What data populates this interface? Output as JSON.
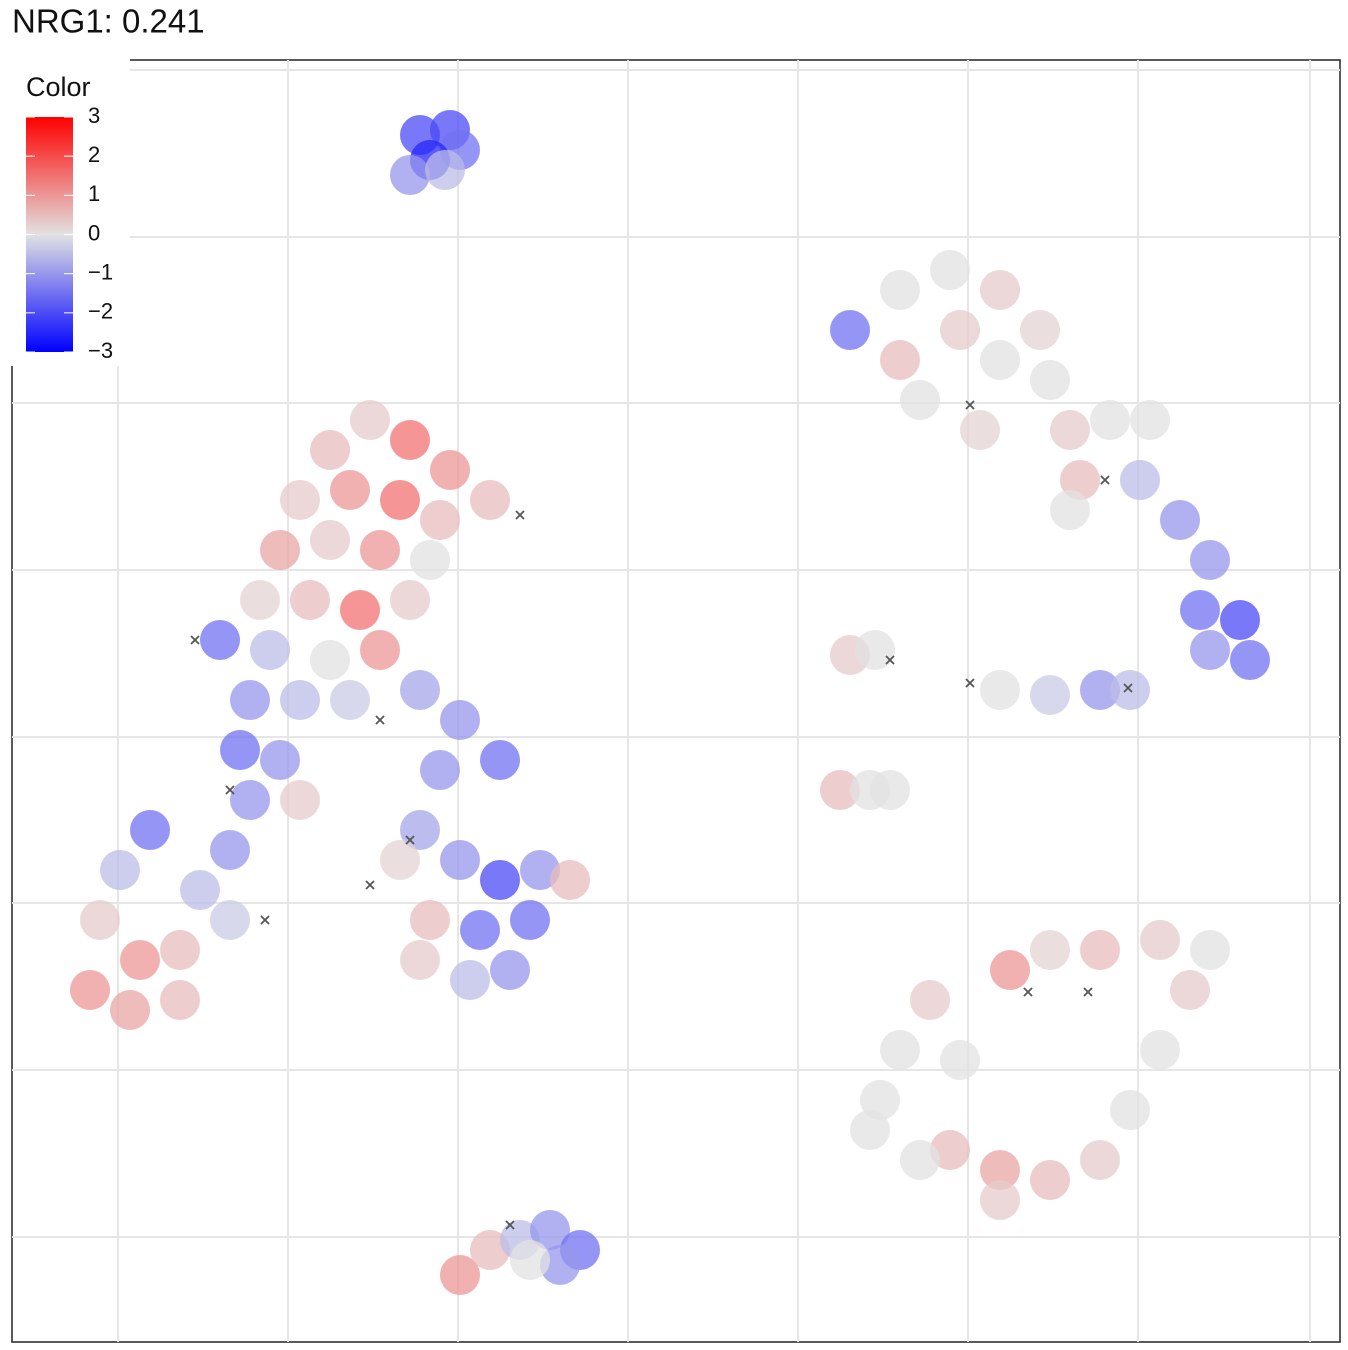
{
  "chart_data": {
    "type": "scatter",
    "title": "NRG1: 0.241",
    "legend_title": "Color",
    "xlim": [
      12,
      1340
    ],
    "ylim": [
      8,
      1290
    ],
    "xticks": [
      118,
      288,
      458,
      628,
      798,
      968,
      1138,
      1310
    ],
    "yticks": [
      113,
      280,
      447,
      613,
      780,
      947,
      1113,
      1280
    ],
    "grid": true,
    "clim": [
      -3,
      3
    ],
    "colorscale": {
      "low": "#0000ff",
      "mid": "#e2e2e2",
      "high": "#ff0000"
    },
    "cticks": [
      3,
      2,
      1,
      0,
      {
        "value": -1,
        "label": "−1"
      },
      {
        "value": -2,
        "label": "−2"
      },
      {
        "value": -3,
        "label": "−3"
      }
    ],
    "x": [
      420,
      450,
      460,
      430,
      410,
      445,
      370,
      330,
      410,
      450,
      490,
      300,
      350,
      400,
      440,
      280,
      330,
      380,
      430,
      260,
      310,
      360,
      410,
      220,
      270,
      330,
      380,
      250,
      300,
      350,
      420,
      240,
      280,
      460,
      500,
      440,
      250,
      230,
      200,
      150,
      120,
      100,
      140,
      180,
      90,
      130,
      180,
      230,
      420,
      460,
      500,
      540,
      570,
      430,
      480,
      530,
      420,
      470,
      510,
      400,
      300,
      850,
      900,
      950,
      1000,
      1040,
      900,
      960,
      1000,
      920,
      980,
      1050,
      1070,
      1110,
      1150,
      1080,
      1140,
      1180,
      1210,
      1200,
      1240,
      1250,
      1210,
      1070,
      850,
      875,
      1000,
      1050,
      1100,
      1130,
      840,
      870,
      890,
      880,
      900,
      930,
      960,
      950,
      1000,
      1050,
      1100,
      1130,
      1160,
      1190,
      1210,
      1160,
      1100,
      1050,
      1010,
      1000,
      920,
      870,
      460,
      490,
      520,
      550,
      580,
      560,
      530
    ],
    "y": [
      1215,
      1220,
      1200,
      1190,
      1175,
      1180,
      930,
      900,
      910,
      880,
      850,
      850,
      860,
      850,
      830,
      800,
      810,
      800,
      790,
      750,
      750,
      740,
      750,
      710,
      700,
      690,
      700,
      650,
      650,
      650,
      660,
      600,
      590,
      630,
      590,
      580,
      550,
      500,
      460,
      520,
      480,
      430,
      390,
      400,
      360,
      340,
      350,
      430,
      520,
      490,
      470,
      480,
      470,
      430,
      420,
      430,
      390,
      370,
      380,
      490,
      550,
      1020,
      1060,
      1080,
      1060,
      1020,
      990,
      1020,
      990,
      950,
      920,
      970,
      920,
      930,
      930,
      870,
      870,
      830,
      790,
      740,
      730,
      690,
      700,
      840,
      695,
      700,
      660,
      655,
      660,
      660,
      560,
      560,
      560,
      250,
      300,
      350,
      290,
      200,
      180,
      170,
      190,
      240,
      300,
      360,
      400,
      410,
      400,
      400,
      380,
      150,
      190,
      220,
      75,
      100,
      110,
      120,
      100,
      85,
      90
    ],
    "values": [
      -2,
      -2,
      -1.5,
      -2.5,
      -1,
      -0.5,
      0.3,
      0.5,
      1.5,
      1,
      0.5,
      0.3,
      1,
      1.5,
      0.5,
      0.8,
      0.3,
      1,
      0,
      0.2,
      0.5,
      1.5,
      0.3,
      -1.5,
      -0.5,
      0,
      1,
      -1,
      -0.5,
      -0.3,
      -0.8,
      -1.5,
      -1,
      -1,
      -1.5,
      -1,
      -1,
      -1,
      -0.5,
      -1.5,
      -0.5,
      0.3,
      1,
      0.5,
      1,
      0.8,
      0.5,
      -0.3,
      -0.8,
      -1,
      -2,
      -1,
      0.5,
      0.5,
      -1.5,
      -1.5,
      0.3,
      -0.5,
      -1,
      0.2,
      0.3,
      -1.5,
      0,
      0,
      0.3,
      0.2,
      0.5,
      0.3,
      0,
      0,
      0.2,
      0,
      0.3,
      0,
      0,
      0.5,
      -0.5,
      -1,
      -1,
      -1.5,
      -2,
      -1.5,
      -1,
      0,
      0.3,
      0,
      0,
      -0.3,
      -1,
      -0.5,
      0.5,
      0,
      0,
      0,
      0,
      0.3,
      0,
      0.5,
      0.8,
      0.5,
      0.3,
      0,
      0,
      0.3,
      0,
      0.3,
      0.5,
      0.2,
      1,
      0.3,
      0,
      0,
      1,
      0.5,
      -0.5,
      -1,
      -1.5,
      -1,
      0
    ],
    "na_x": [
      195,
      230,
      520,
      370,
      410,
      380,
      970,
      1105,
      890,
      970,
      1128,
      1028,
      1088,
      510,
      265
    ],
    "na_y": [
      710,
      560,
      835,
      465,
      510,
      630,
      945,
      870,
      690,
      667,
      662,
      358,
      358,
      125,
      430
    ],
    "na_color": "#555555"
  }
}
